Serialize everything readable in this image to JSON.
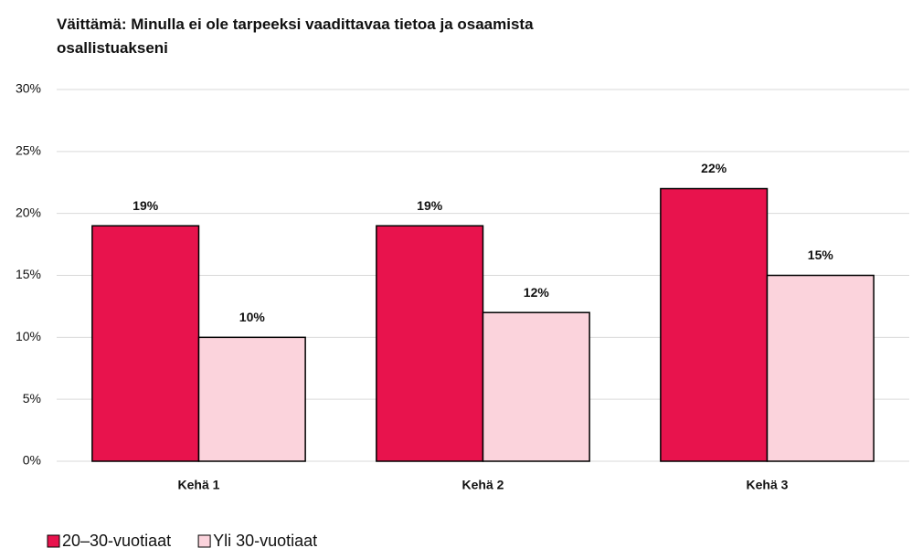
{
  "chart_data": {
    "type": "bar",
    "title": "Väittämä: Minulla ei ole tarpeeksi vaadittavaa tietoa ja osaamista osallistuakseni",
    "categories": [
      "Kehä 1",
      "Kehä 2",
      "Kehä 3"
    ],
    "series": [
      {
        "name": "20–30-vuotiaat",
        "color": "#e8134d",
        "values": [
          19,
          19,
          22
        ],
        "value_labels": [
          "19%",
          "19%",
          "22%"
        ]
      },
      {
        "name": "Yli 30-vuotiaat",
        "color": "#fbd3dc",
        "values": [
          10,
          12,
          15
        ],
        "value_labels": [
          "10%",
          "12%",
          "15%"
        ]
      }
    ],
    "ylim": [
      0,
      30
    ],
    "yticks": [
      {
        "value": 0,
        "label": "0%"
      },
      {
        "value": 5,
        "label": "5%"
      },
      {
        "value": 10,
        "label": "10%"
      },
      {
        "value": 15,
        "label": "15%"
      },
      {
        "value": 20,
        "label": "20%"
      },
      {
        "value": 25,
        "label": "25%"
      },
      {
        "value": 30,
        "label": "30%"
      }
    ],
    "grid": true,
    "legend": "bottom"
  }
}
